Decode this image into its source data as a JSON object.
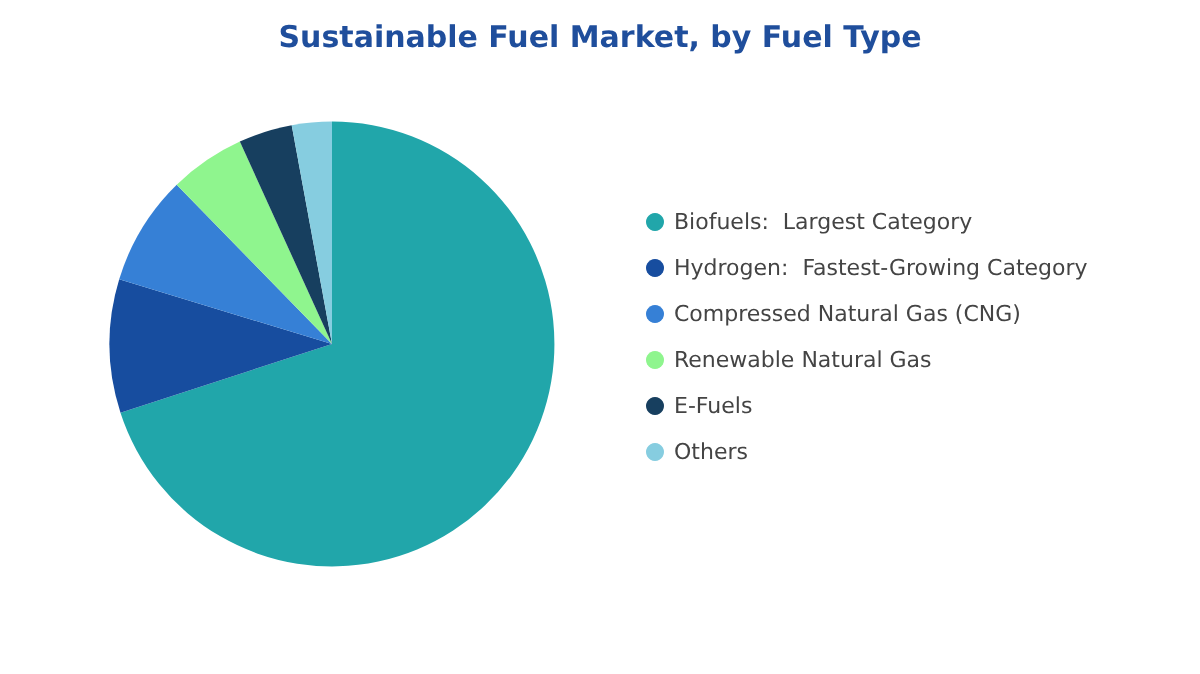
{
  "chart_data": {
    "type": "pie",
    "title": "Sustainable Fuel Market, by Fuel Type",
    "categories": [
      "Biofuels:  Largest Category",
      "Hydrogen:  Fastest-Growing Category",
      "Compressed Natural Gas (CNG)",
      "Renewable Natural Gas",
      "E-Fuels",
      "Others"
    ],
    "values": [
      70,
      9.7,
      8,
      5.5,
      3.9,
      2.9
    ],
    "colors": [
      "#21a6aa",
      "#174d9f",
      "#3680d6",
      "#8ff58e",
      "#173f5f",
      "#86cde0"
    ],
    "legend": "right"
  }
}
